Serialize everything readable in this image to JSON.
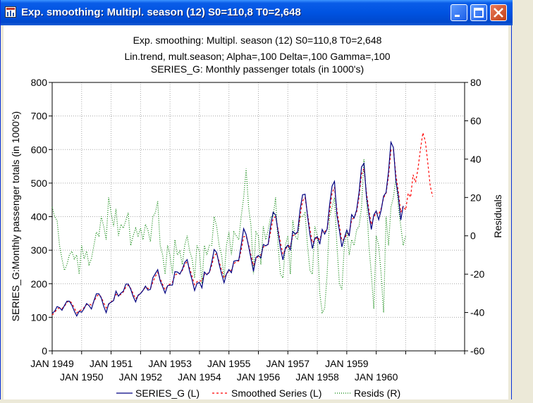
{
  "window": {
    "title": "Exp. smoothing: Multipl. season (12) S0=110,8 T0=2,648",
    "buttons": [
      "minimize-icon",
      "maximize-icon",
      "close-icon"
    ]
  },
  "chart_data": {
    "type": "line",
    "title": "Exp. smoothing: Multipl. season (12) S0=110,8 T0=2,648",
    "subtitle1": "Lin.trend, mult.season; Alpha=,100 Delta=,100 Gamma=,100",
    "subtitle2": "SERIES_G: Monthly passenger totals (in 1000's)",
    "ylabel": "SERIES_G:Monthly passenger totals (in 1000's)",
    "y2label": "Residuals",
    "ylim": [
      0,
      800
    ],
    "y2lim": [
      -60,
      80
    ],
    "yticks": [
      "0",
      "100",
      "200",
      "300",
      "400",
      "500",
      "600",
      "700",
      "800"
    ],
    "y2ticks": [
      "-60",
      "-40",
      "-20",
      "0",
      "20",
      "40",
      "60",
      "80"
    ],
    "xticks_top": [
      "JAN 1949",
      "JAN 1951",
      "JAN 1953",
      "JAN 1955",
      "JAN 1957",
      "JAN 1959"
    ],
    "xticks_bottom": [
      "JAN 1950",
      "JAN 1952",
      "JAN 1954",
      "JAN 1956",
      "JAN 1958",
      "JAN 1960"
    ],
    "grid": true,
    "legend_position": "bottom",
    "x_start": "JAN 1949",
    "series": [
      {
        "name": "SERIES_G (L)",
        "axis": "left",
        "color": "#000080",
        "values": [
          112,
          118,
          132,
          129,
          121,
          135,
          148,
          148,
          136,
          119,
          104,
          118,
          115,
          126,
          141,
          135,
          125,
          149,
          170,
          170,
          158,
          133,
          114,
          140,
          145,
          150,
          178,
          163,
          172,
          178,
          199,
          199,
          184,
          162,
          146,
          166,
          171,
          180,
          193,
          181,
          183,
          218,
          230,
          242,
          209,
          191,
          172,
          194,
          196,
          196,
          236,
          235,
          229,
          243,
          264,
          272,
          237,
          211,
          180,
          201,
          204,
          188,
          235,
          227,
          234,
          264,
          302,
          293,
          259,
          229,
          203,
          229,
          242,
          233,
          267,
          269,
          270,
          315,
          364,
          347,
          312,
          274,
          237,
          278,
          284,
          277,
          317,
          313,
          318,
          374,
          413,
          405,
          355,
          306,
          271,
          306,
          315,
          301,
          356,
          348,
          355,
          422,
          465,
          467,
          404,
          347,
          305,
          336,
          340,
          318,
          362,
          348,
          363,
          435,
          491,
          505,
          404,
          359,
          310,
          337,
          360,
          342,
          406,
          396,
          420,
          472,
          548,
          559,
          463,
          407,
          362,
          405,
          417,
          391,
          419,
          461,
          472,
          535,
          622,
          606,
          508,
          461,
          390,
          432
        ]
      },
      {
        "name": "Smoothed Series (L)",
        "axis": "left",
        "color": "#ff0000",
        "values": [
          107,
          114,
          125,
          128,
          126,
          133,
          144,
          150,
          142,
          128,
          113,
          120,
          122,
          129,
          138,
          140,
          136,
          146,
          162,
          168,
          160,
          143,
          128,
          138,
          146,
          153,
          168,
          167,
          168,
          176,
          190,
          196,
          186,
          170,
          155,
          164,
          172,
          180,
          190,
          186,
          185,
          205,
          222,
          234,
          215,
          198,
          182,
          193,
          199,
          204,
          226,
          230,
          229,
          240,
          257,
          266,
          246,
          222,
          197,
          206,
          210,
          207,
          228,
          230,
          233,
          255,
          284,
          290,
          266,
          240,
          217,
          228,
          239,
          240,
          260,
          266,
          268,
          300,
          340,
          342,
          316,
          284,
          254,
          271,
          283,
          285,
          309,
          314,
          317,
          356,
          395,
          400,
          362,
          322,
          288,
          302,
          314,
          311,
          343,
          347,
          353,
          402,
          447,
          457,
          409,
          362,
          322,
          331,
          339,
          331,
          355,
          355,
          362,
          415,
          470,
          488,
          419,
          371,
          329,
          333,
          349,
          349,
          391,
          397,
          413,
          459,
          527,
          543,
          473,
          420,
          376,
          398,
          413,
          407,
          424,
          456,
          470,
          521,
          598,
          601,
          525,
          474,
          413,
          431,
          420,
          470,
          458,
          525,
          502,
          542,
          600,
          650,
          625,
          560,
          490,
          460
        ]
      },
      {
        "name": "Resids (R)",
        "axis": "right",
        "color": "#008000",
        "values": [
          15,
          10,
          8,
          -5,
          -12,
          -18,
          -15,
          -10,
          -8,
          -12,
          -10,
          -20,
          -5,
          -12,
          -8,
          -15,
          -12,
          -5,
          2,
          0,
          10,
          5,
          -2,
          20,
          12,
          5,
          14,
          0,
          6,
          4,
          8,
          12,
          -5,
          0,
          4,
          0,
          4,
          -2,
          6,
          3,
          -3,
          10,
          12,
          18,
          -5,
          -10,
          -20,
          -5,
          -10,
          -20,
          -2,
          -10,
          -8,
          -15,
          -5,
          0,
          -8,
          -12,
          -22,
          -5,
          -8,
          -25,
          -5,
          -10,
          -5,
          -5,
          10,
          5,
          -5,
          -10,
          -22,
          -5,
          2,
          -10,
          2,
          0,
          -2,
          10,
          20,
          35,
          15,
          5,
          -20,
          2,
          0,
          -15,
          5,
          -2,
          3,
          10,
          10,
          20,
          -5,
          -20,
          -22,
          -5,
          0,
          -20,
          8,
          0,
          -2,
          10,
          10,
          12,
          -5,
          -18,
          -20,
          5,
          0,
          -30,
          -40,
          -38,
          -20,
          10,
          15,
          20,
          -5,
          -25,
          -28,
          -5,
          3,
          -10,
          -2,
          -5,
          3,
          5,
          15,
          40,
          20,
          -5,
          -20,
          -38,
          0,
          -5,
          -20,
          -40,
          10,
          -5,
          15,
          20,
          30,
          15,
          5,
          -5,
          0
        ]
      }
    ]
  }
}
